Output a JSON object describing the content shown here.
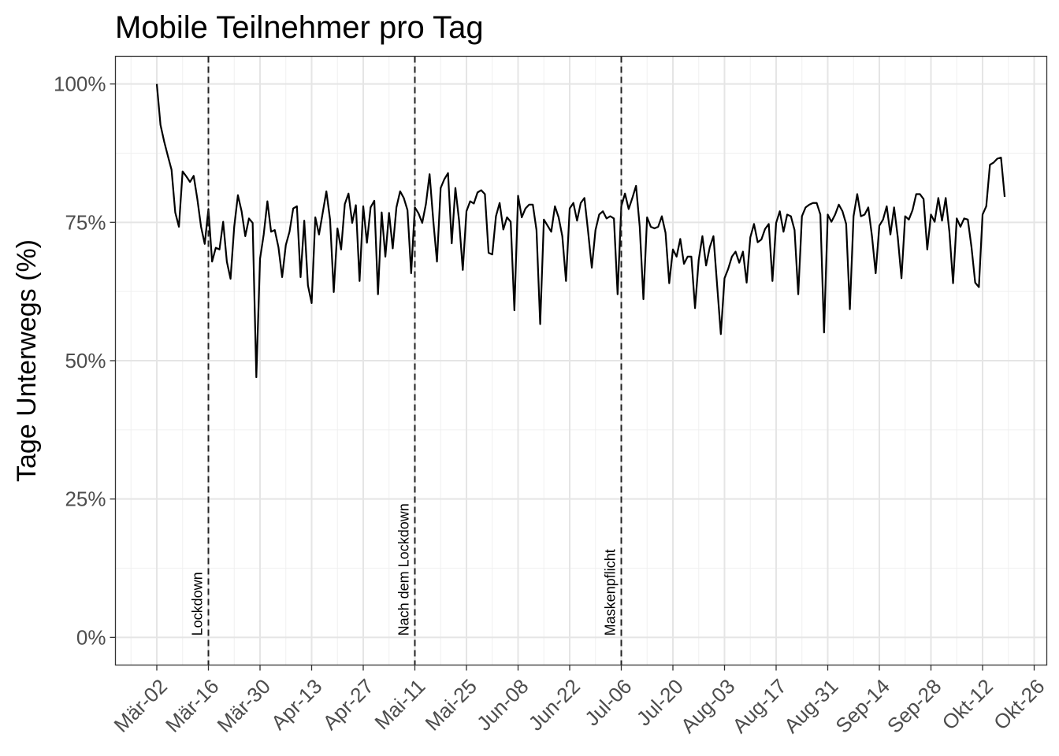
{
  "chart_data": {
    "type": "line",
    "title": "Mobile Teilnehmer pro Tag",
    "xlabel": "",
    "ylabel": "Tage Unterwegs (%)",
    "ylim": [
      -5,
      105
    ],
    "grid": true,
    "x_ticks": [
      "Mär-02",
      "Mär-16",
      "Mär-30",
      "Apr-13",
      "Apr-27",
      "Mai-11",
      "Mai-25",
      "Jun-08",
      "Jun-22",
      "Jul-06",
      "Jul-20",
      "Aug-03",
      "Aug-17",
      "Aug-31",
      "Sep-14",
      "Sep-28",
      "Okt-12",
      "Okt-26"
    ],
    "y_ticks": [
      0,
      25,
      50,
      75,
      100
    ],
    "y_tick_labels": [
      "0%",
      "25%",
      "50%",
      "75%",
      "100%"
    ],
    "events": [
      {
        "date": "Mär-16",
        "label": "Lockdown"
      },
      {
        "date": "Mai-11",
        "label": "Nach dem Lockdown"
      },
      {
        "date": "Jul-06",
        "label": "Maskenpflicht"
      }
    ],
    "series": [
      {
        "start": "Mär-02",
        "values": [
          100,
          92.6,
          89.6,
          87,
          84.5,
          76.8,
          74.2,
          84.2,
          83.3,
          82.3,
          83.4,
          79.2,
          74.2,
          71.1,
          77.4,
          67.9,
          70.4,
          70.1,
          75.1,
          67.9,
          64.8,
          74.2,
          79.9,
          77,
          72.5,
          75.7,
          74.9,
          47,
          68.4,
          72.8,
          78.8,
          73.3,
          73.6,
          70.5,
          65.1,
          70.9,
          73.3,
          77.5,
          77.9,
          65.1,
          75.3,
          63.6,
          60.4,
          75.9,
          72.8,
          76.7,
          80.6,
          75.5,
          62.4,
          73.9,
          70.1,
          78.3,
          80.2,
          74.9,
          78.1,
          64.4,
          77.9,
          71.3,
          77.7,
          78.9,
          62,
          76.8,
          68.8,
          76.7,
          70.3,
          77.7,
          80.6,
          79.4,
          77.2,
          65.8,
          77.7,
          76.6,
          74.9,
          78.3,
          83.7,
          75.3,
          67.9,
          81.2,
          82.8,
          83.9,
          71.2,
          81.2,
          75.3,
          66.4,
          77,
          78.8,
          78.4,
          80.4,
          80.8,
          80.1,
          69.5,
          69.2,
          76.1,
          78.5,
          73.7,
          75.9,
          75.1,
          59.1,
          79.8,
          75.9,
          77.5,
          78.2,
          78.2,
          73.6,
          56.6,
          75.5,
          74.4,
          73.3,
          77.9,
          75.9,
          72.5,
          64.4,
          77.5,
          78.5,
          75.3,
          78.5,
          79.4,
          73.3,
          66.8,
          73.6,
          76.4,
          77,
          75.7,
          76.1,
          75.7,
          62,
          77.9,
          80.2,
          77.4,
          79.4,
          81.6,
          74.2,
          61.1,
          75.9,
          74.2,
          73.9,
          74.2,
          76.1,
          73.1,
          64,
          70.1,
          68.8,
          72,
          67.5,
          68.8,
          68.8,
          59.5,
          68.2,
          72.5,
          67.2,
          70.5,
          72.5,
          63.6,
          54.8,
          64.9,
          66.6,
          68.8,
          69.7,
          67.7,
          69.7,
          64.1,
          72.3,
          74.7,
          71.4,
          71.9,
          73.8,
          74.7,
          64.4,
          74.9,
          77,
          73.3,
          76.4,
          76.1,
          73.6,
          62,
          76.1,
          77.7,
          78.2,
          78.5,
          78.5,
          76.4,
          55.1,
          76.4,
          75.1,
          76.4,
          78.2,
          77,
          74.7,
          59.3,
          76.1,
          80.1,
          76.1,
          76.4,
          77.7,
          72.5,
          65.8,
          74.4,
          75.5,
          77.9,
          72.8,
          77.7,
          72.3,
          64.9,
          76.1,
          75.5,
          77.2,
          80.1,
          80.1,
          79.2,
          70.1,
          76.4,
          75.1,
          79.4,
          75.3,
          79.4,
          73.3,
          64,
          75.7,
          74.2,
          75.7,
          75.5,
          70.5,
          64.1,
          63.3,
          76.4,
          77.9,
          85.4,
          85.8,
          86.5,
          86.7,
          79.6
        ]
      }
    ]
  }
}
